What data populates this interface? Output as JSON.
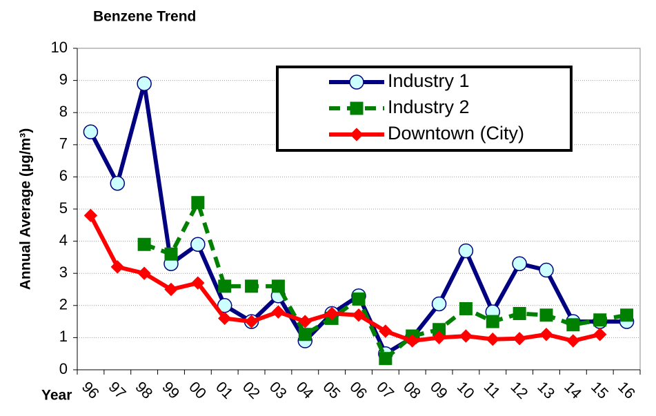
{
  "chart_data": {
    "type": "line",
    "title": "Benzene Trend",
    "xlabel": "Year",
    "ylabel": "Annual Average (µg/m³)",
    "categories": [
      "96",
      "97",
      "98",
      "99",
      "00",
      "01",
      "02",
      "03",
      "04",
      "05",
      "06",
      "07",
      "08",
      "09",
      "10",
      "11",
      "12",
      "13",
      "14",
      "15",
      "16"
    ],
    "series": [
      {
        "name": "Industry 1",
        "color": "#000080",
        "marker": "circle",
        "dash": false,
        "values": [
          7.4,
          5.8,
          8.9,
          3.3,
          3.9,
          2.0,
          1.5,
          2.3,
          0.9,
          1.75,
          2.3,
          0.5,
          1.0,
          2.05,
          3.7,
          1.8,
          3.3,
          3.1,
          1.5,
          1.5,
          1.5
        ]
      },
      {
        "name": "Industry 2",
        "color": "#008000",
        "marker": "square",
        "dash": true,
        "values": [
          null,
          null,
          3.9,
          3.6,
          5.2,
          2.6,
          2.6,
          2.6,
          1.1,
          1.6,
          2.2,
          0.35,
          1.05,
          1.25,
          1.9,
          1.5,
          1.75,
          1.7,
          1.4,
          1.55,
          1.7
        ]
      },
      {
        "name": "Downtown (City)",
        "color": "#ff0000",
        "marker": "diamond",
        "dash": false,
        "values": [
          4.8,
          3.2,
          3.0,
          2.5,
          2.7,
          1.6,
          1.5,
          1.8,
          1.5,
          1.75,
          1.7,
          1.2,
          0.9,
          1.0,
          1.05,
          0.95,
          0.97,
          1.1,
          0.9,
          1.1,
          null
        ]
      }
    ],
    "ylim": [
      0,
      10
    ],
    "yticks": [
      0,
      1,
      2,
      3,
      4,
      5,
      6,
      7,
      8,
      9,
      10
    ],
    "grid": true,
    "legend": "upper right"
  }
}
